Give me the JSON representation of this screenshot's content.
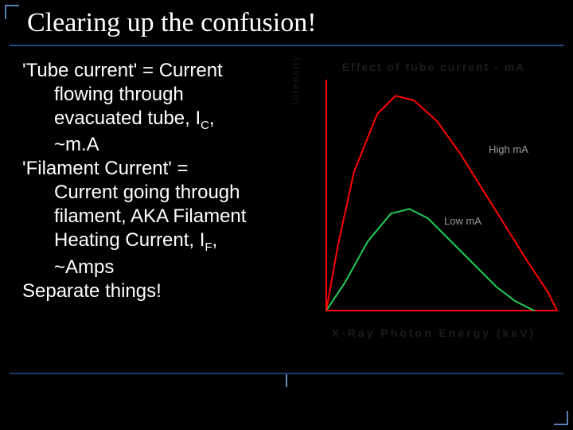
{
  "title": "Clearing up the confusion!",
  "body": {
    "p1_line1": "'Tube current' = Current",
    "p1_line2": "flowing through",
    "p1_line3a": "evacuated tube, I",
    "p1_line3_sub": "C",
    "p1_line3b": ",",
    "p1_line4": "~m.A",
    "p2_line1": "'Filament Current'  =",
    "p2_line2": "Current going through",
    "p2_line3": "filament, AKA Filament",
    "p2_line4a": "Heating Current, I",
    "p2_line4_sub": "F",
    "p2_line4b": ",",
    "p2_line5": "~Amps",
    "p3": "Separate things!"
  },
  "chart": {
    "type": "line",
    "title": "Effect of tube current - mA",
    "xlabel": "X-Ray Photon Energy (keV)",
    "ylabel": "Intensity",
    "legend_high": "High mA",
    "legend_low": "Low mA",
    "axis_color": "#ff0000",
    "high_curve_color": "#ff0000",
    "low_curve_color": "#22cc55",
    "background": "#000000",
    "xlim": [
      0,
      100
    ],
    "ylim": [
      0,
      100
    ],
    "high_curve": [
      [
        0,
        0
      ],
      [
        5,
        28
      ],
      [
        12,
        60
      ],
      [
        22,
        85
      ],
      [
        30,
        93
      ],
      [
        38,
        91
      ],
      [
        48,
        82
      ],
      [
        58,
        68
      ],
      [
        68,
        52
      ],
      [
        78,
        36
      ],
      [
        88,
        20
      ],
      [
        96,
        8
      ],
      [
        100,
        0
      ]
    ],
    "low_curve": [
      [
        0,
        0
      ],
      [
        8,
        12
      ],
      [
        18,
        30
      ],
      [
        28,
        42
      ],
      [
        36,
        44
      ],
      [
        44,
        40
      ],
      [
        54,
        30
      ],
      [
        64,
        20
      ],
      [
        74,
        10
      ],
      [
        82,
        4
      ],
      [
        90,
        0
      ]
    ],
    "line_width": 2
  },
  "colors": {
    "text": "#ffffff",
    "muted": "#9a9a9a",
    "dark_label": "#1c1c1c",
    "accent_blue": "#5a7fb8",
    "rule_blue": "#1b3d6e"
  }
}
